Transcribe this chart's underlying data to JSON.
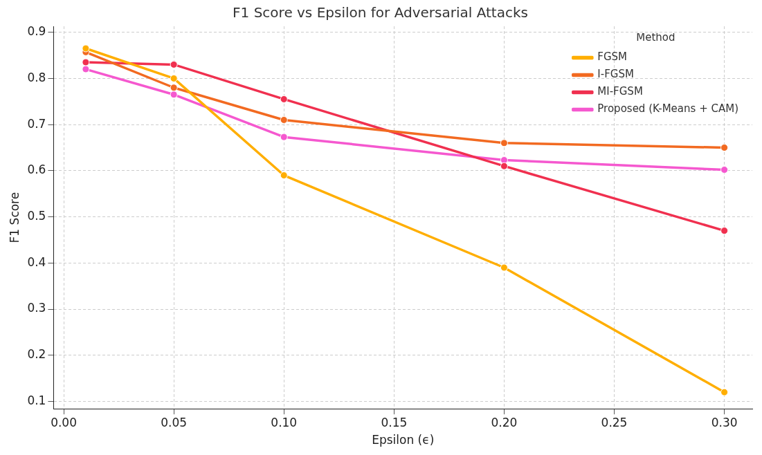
{
  "chart_data": {
    "type": "line",
    "title": "F1 Score vs Epsilon for Adversarial Attacks",
    "xlabel": "Epsilon (ϵ)",
    "ylabel": "F1 Score",
    "legend_title": "Method",
    "x": [
      0.01,
      0.05,
      0.1,
      0.2,
      0.3
    ],
    "series": [
      {
        "name": "FGSM",
        "color": "#ffae00",
        "values": [
          0.865,
          0.8,
          0.59,
          0.39,
          0.12
        ]
      },
      {
        "name": "I-FGSM",
        "color": "#f26a21",
        "values": [
          0.857,
          0.78,
          0.71,
          0.66,
          0.65
        ]
      },
      {
        "name": "MI-FGSM",
        "color": "#f0304f",
        "values": [
          0.835,
          0.83,
          0.755,
          0.61,
          0.47
        ]
      },
      {
        "name": "Proposed (K-Means + CAM)",
        "color": "#f558cf",
        "values": [
          0.82,
          0.765,
          0.673,
          0.623,
          0.602
        ]
      }
    ],
    "xlim": [
      -0.0046,
      0.3127
    ],
    "ylim": [
      0.084,
      0.913
    ],
    "xticks": [
      {
        "value": 0,
        "label": "0.00"
      },
      {
        "value": 0.05,
        "label": "0.05"
      },
      {
        "value": 0.1,
        "label": "0.10"
      },
      {
        "value": 0.15,
        "label": "0.15"
      },
      {
        "value": 0.2,
        "label": "0.20"
      },
      {
        "value": 0.25,
        "label": "0.25"
      },
      {
        "value": 0.3,
        "label": "0.30"
      }
    ],
    "yticks": [
      0.1,
      0.2,
      0.3,
      0.4,
      0.5,
      0.6,
      0.7,
      0.8,
      0.9
    ],
    "grid": true,
    "legend": "top right",
    "marker": "circle",
    "line_style": "solid"
  }
}
